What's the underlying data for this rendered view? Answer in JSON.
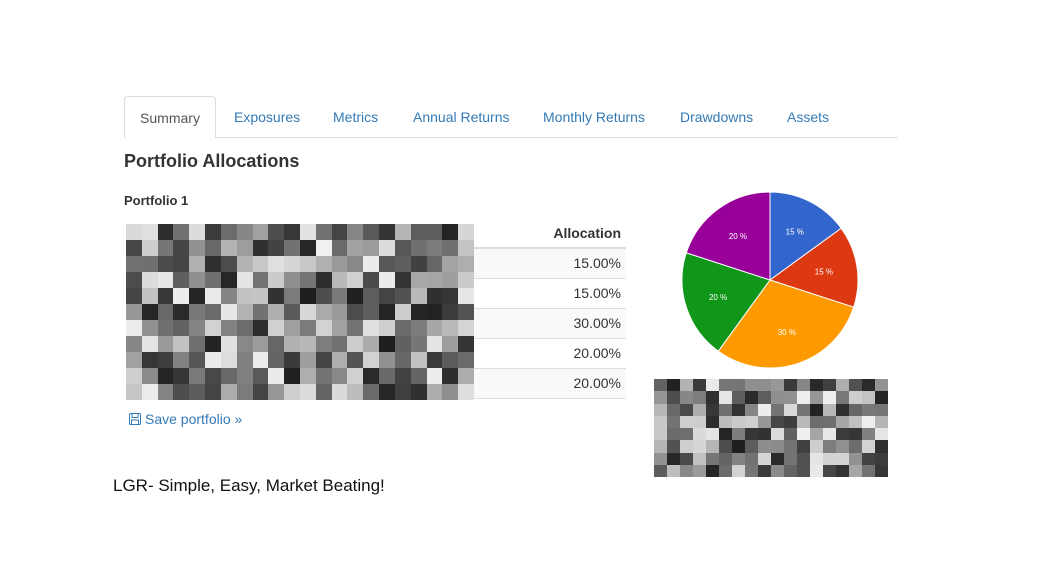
{
  "tabs": [
    {
      "label": "Summary",
      "active": true
    },
    {
      "label": "Exposures",
      "active": false
    },
    {
      "label": "Metrics",
      "active": false
    },
    {
      "label": "Annual Returns",
      "active": false
    },
    {
      "label": "Monthly Returns",
      "active": false
    },
    {
      "label": "Drawdowns",
      "active": false
    },
    {
      "label": "Assets",
      "active": false
    }
  ],
  "section_title": "Portfolio Allocations",
  "portfolio": {
    "name": "Portfolio 1",
    "column_header": "Allocation",
    "rows": [
      {
        "allocation": "15.00%"
      },
      {
        "allocation": "15.00%"
      },
      {
        "allocation": "30.00%"
      },
      {
        "allocation": "20.00%"
      },
      {
        "allocation": "20.00%"
      }
    ]
  },
  "save_link": {
    "label": "Save portfolio »",
    "icon": "floppy-disk-icon"
  },
  "chart_data": {
    "type": "pie",
    "slices": [
      {
        "label": "15 %",
        "value": 15,
        "color": "#3366cc"
      },
      {
        "label": "15 %",
        "value": 15,
        "color": "#dc3912"
      },
      {
        "label": "30 %",
        "value": 30,
        "color": "#ff9900"
      },
      {
        "label": "20 %",
        "value": 20,
        "color": "#109618"
      },
      {
        "label": "20 %",
        "value": 20,
        "color": "#990099"
      }
    ]
  },
  "colors": {
    "link": "#337ab7",
    "border": "#dddddd",
    "stripe": "#f9f9f9"
  },
  "tagline": "LGR- Simple, Easy, Market Beating!"
}
